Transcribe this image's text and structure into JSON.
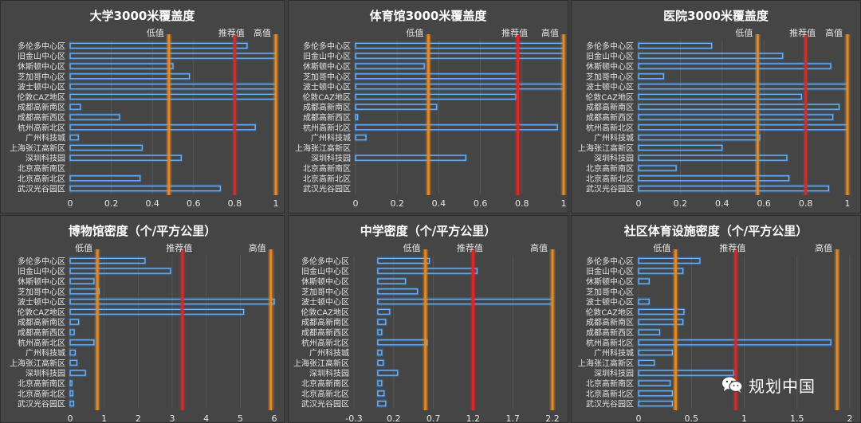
{
  "colors": {
    "bar_stroke": "#6fb6ff",
    "bar_glow": "#2f7fd0",
    "low_line": "#e08a2a",
    "rec_line": "#d82a2a",
    "high_line": "#e08a2a",
    "panel_bg": "#454545",
    "label": "#e6e6e6"
  },
  "legend_labels": {
    "low": "低值",
    "rec": "推荐值",
    "high": "高值"
  },
  "watermark": {
    "text": "规划中国",
    "icon": "wechat-icon"
  },
  "chart_data": [
    {
      "type": "bar",
      "title": "大学3000米覆盖度",
      "categories": [
        "多伦多中心区",
        "旧金山中心区",
        "休斯顿中心区",
        "芝加哥中心区",
        "波士顿中心区",
        "伦敦CAZ地区",
        "成都高新南区",
        "成都高新西区",
        "杭州高新北区",
        "广州科技城",
        "上海张江高新区",
        "深圳科技园",
        "北京高新南区",
        "北京高新北区",
        "武汉光谷园区"
      ],
      "values": [
        0.86,
        1.0,
        0.5,
        0.58,
        1.0,
        1.0,
        0.05,
        0.24,
        0.9,
        0.04,
        0.35,
        0.54,
        0.0,
        0.34,
        0.73
      ],
      "xlim": [
        0,
        1
      ],
      "xticks": [
        0,
        0.2,
        0.4,
        0.6,
        0.8,
        1
      ],
      "tick_labels": [
        "0",
        "0.2",
        "0.4",
        "0.6",
        "0.8",
        "1"
      ],
      "low": 0.48,
      "recommended": 0.8,
      "high": 1.0
    },
    {
      "type": "bar",
      "title": "体育馆3000米覆盖度",
      "categories": [
        "多伦多中心区",
        "旧金山中心区",
        "休斯顿中心区",
        "芝加哥中心区",
        "波士顿中心区",
        "伦敦CAZ地区",
        "成都高新南区",
        "成都高新西区",
        "杭州高新北区",
        "广州科技城",
        "上海张江高新区",
        "深圳科技园",
        "北京高新南区",
        "北京高新北区",
        "武汉光谷园区"
      ],
      "values": [
        1.0,
        1.0,
        0.33,
        0.78,
        1.0,
        0.77,
        0.39,
        0.01,
        0.97,
        0.05,
        0.0,
        0.53,
        0.0,
        0.0,
        0.0
      ],
      "xlim": [
        0,
        1
      ],
      "xticks": [
        0,
        0.2,
        0.4,
        0.6,
        0.8,
        1
      ],
      "tick_labels": [
        "0",
        "0.2",
        "0.4",
        "0.6",
        "0.8",
        "1"
      ],
      "low": 0.35,
      "recommended": 0.78,
      "high": 1.0
    },
    {
      "type": "bar",
      "title": "医院3000米覆盖度",
      "categories": [
        "多伦多中心区",
        "旧金山中心区",
        "休斯顿中心区",
        "芝加哥中心区",
        "波士顿中心区",
        "伦敦CAZ地区",
        "成都高新南区",
        "成都高新西区",
        "杭州高新北区",
        "广州科技城",
        "上海张江高新区",
        "深圳科技园",
        "北京高新南区",
        "北京高新北区",
        "武汉光谷园区"
      ],
      "values": [
        0.35,
        0.69,
        0.92,
        0.12,
        1.0,
        0.78,
        0.96,
        0.93,
        1.0,
        0.58,
        0.4,
        0.71,
        0.18,
        0.72,
        0.91
      ],
      "xlim": [
        0,
        1
      ],
      "xticks": [
        0,
        0.2,
        0.4,
        0.6,
        0.8,
        1
      ],
      "tick_labels": [
        "0",
        "0.2",
        "0.4",
        "0.6",
        "0.8",
        "1"
      ],
      "low": 0.57,
      "recommended": 0.8,
      "high": 1.0
    },
    {
      "type": "bar",
      "title": "博物馆密度（个/平方公里）",
      "categories": [
        "多伦多中心区",
        "旧金山中心区",
        "休斯顿中心区",
        "芝加哥中心区",
        "波士顿中心区",
        "伦敦CAZ地区",
        "成都高新南区",
        "成都高新西区",
        "杭州高新北区",
        "广州科技城",
        "上海张江高新区",
        "深圳科技园",
        "北京高新南区",
        "北京高新北区",
        "武汉光谷园区"
      ],
      "values": [
        2.2,
        2.95,
        0.7,
        0.85,
        6.0,
        5.1,
        0.25,
        0.12,
        0.7,
        0.15,
        0.2,
        0.45,
        0.05,
        0.08,
        0.1
      ],
      "xlim": [
        0,
        6
      ],
      "xticks": [
        0,
        1,
        2,
        3,
        4,
        5,
        6
      ],
      "tick_labels": [
        "0",
        "1",
        "2",
        "3",
        "4",
        "5",
        "6"
      ],
      "low": 0.8,
      "recommended": 3.3,
      "high": 5.9
    },
    {
      "type": "bar",
      "title": "中学密度（个/平方公里）",
      "categories": [
        "多伦多中心区",
        "旧金山中心区",
        "休斯顿中心区",
        "芝加哥中心区",
        "波士顿中心区",
        "伦敦CAZ地区",
        "成都高新南区",
        "成都高新西区",
        "杭州高新北区",
        "广州科技城",
        "上海张江高新区",
        "深圳科技园",
        "北京高新南区",
        "北京高新北区",
        "武汉光谷园区"
      ],
      "values": [
        0.65,
        1.25,
        0.35,
        0.5,
        2.2,
        0.15,
        0.1,
        0.05,
        0.62,
        0.05,
        0.07,
        0.25,
        0.05,
        0.08,
        0.1
      ],
      "xlim": [
        -0.3,
        2.2
      ],
      "xticks": [
        -0.3,
        0.2,
        0.7,
        1.2,
        1.7,
        2.2
      ],
      "tick_labels": [
        "-0.3",
        "0.2",
        "0.7",
        "1.2",
        "1.7",
        "2.2"
      ],
      "low": 0.6,
      "recommended": 1.2,
      "high": 2.2
    },
    {
      "type": "bar",
      "title": "社区体育设施密度（个/平方公里）",
      "categories": [
        "多伦多中心区",
        "旧金山中心区",
        "休斯顿中心区",
        "芝加哥中心区",
        "波士顿中心区",
        "伦敦CAZ地区",
        "成都高新南区",
        "成都高新西区",
        "杭州高新北区",
        "广州科技城",
        "上海张江高新区",
        "深圳科技园",
        "北京高新南区",
        "北京高新北区",
        "武汉光谷园区"
      ],
      "values": [
        0.58,
        0.42,
        0.1,
        0.0,
        0.1,
        0.43,
        0.42,
        0.2,
        1.82,
        0.32,
        0.15,
        0.9,
        0.3,
        0.32,
        0.32
      ],
      "xlim": [
        0,
        2
      ],
      "xticks": [
        0,
        0.5,
        1,
        1.5,
        2
      ],
      "tick_labels": [
        "0",
        "0.5",
        "1",
        "1.5",
        "2"
      ],
      "low": 0.35,
      "recommended": 0.92,
      "high": 1.88
    }
  ]
}
